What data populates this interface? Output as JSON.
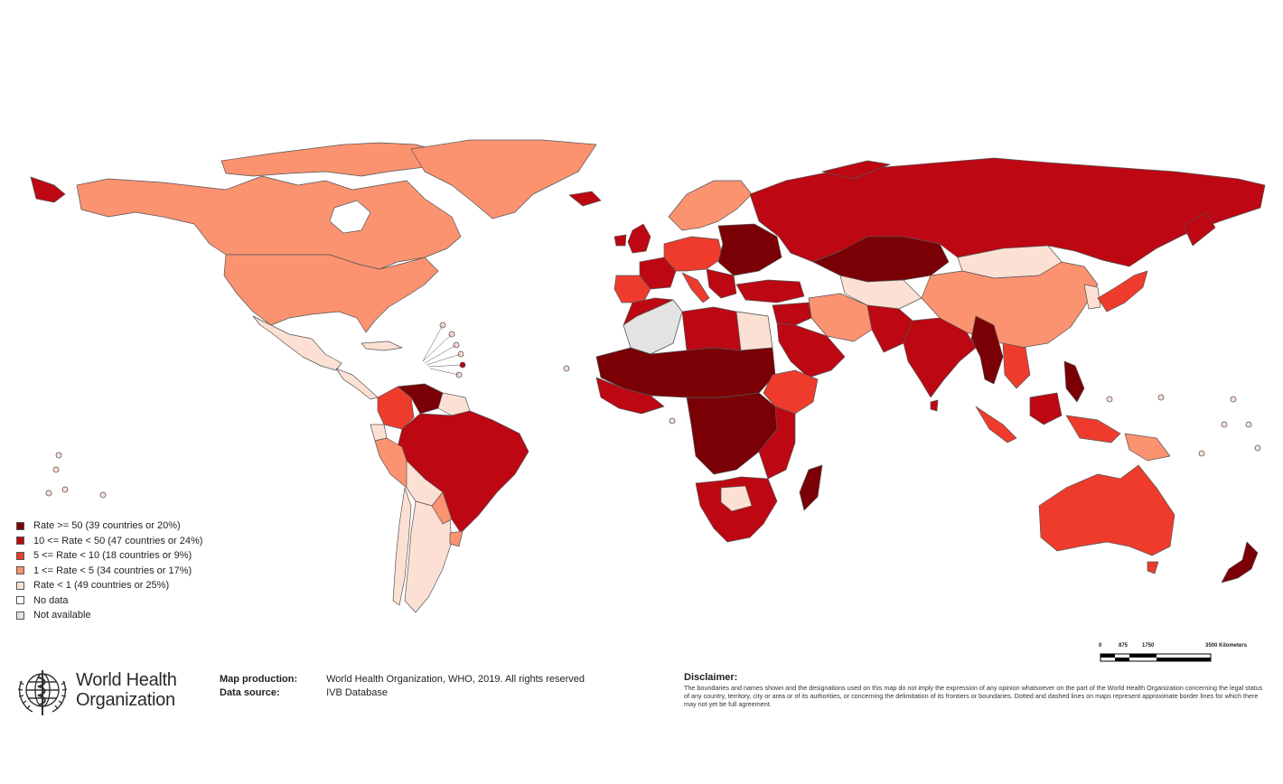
{
  "colors": {
    "rate_50_plus": "#7a0006",
    "rate_10_50": "#bd0712",
    "rate_5_10": "#ef3b2c",
    "rate_1_5": "#fb9270",
    "rate_lt_1": "#fde0d4",
    "no_data": "#ffffff",
    "not_available": "#e3e3e3",
    "border": "#555555"
  },
  "legend": {
    "items": [
      {
        "label": "Rate >= 50 (39 countries or 20%)",
        "color": "#7a0006"
      },
      {
        "label": "10 <= Rate < 50 (47 countries or 24%)",
        "color": "#bd0712"
      },
      {
        "label": "5 <= Rate < 10 (18 countries or 9%)",
        "color": "#ef3b2c"
      },
      {
        "label": "1 <= Rate < 5 (34 countries or 17%)",
        "color": "#fb9270"
      },
      {
        "label": "Rate < 1 (49 countries or 25%)",
        "color": "#fde0d4"
      },
      {
        "label": "No data",
        "color": "#ffffff"
      },
      {
        "label": "Not available",
        "color": "#e3e3e3"
      }
    ]
  },
  "organization": {
    "name_line1": "World Health",
    "name_line2": "Organization",
    "logo": "who-emblem-icon"
  },
  "credits": {
    "map_production_label": "Map production:",
    "map_production_value": "World Health Organization, WHO, 2019. All rights reserved",
    "data_source_label": "Data source:",
    "data_source_value": "IVB Database"
  },
  "disclaimer": {
    "title": "Disclaimer:",
    "text": "The boundaries and names shown and the designations used on this map do not imply the expression of any opinion whatsoever on the part of the World Health Organization concerning the legal status of any country, territory, city or area or of its authorities, or concerning the delimitation of its frontiers or boundaries. Dotted and dashed lines on maps represent approximate border lines for which there may not yet be full agreement."
  },
  "scale": {
    "ticks": [
      "0",
      "875",
      "1750",
      "3500 Kilometers"
    ]
  }
}
